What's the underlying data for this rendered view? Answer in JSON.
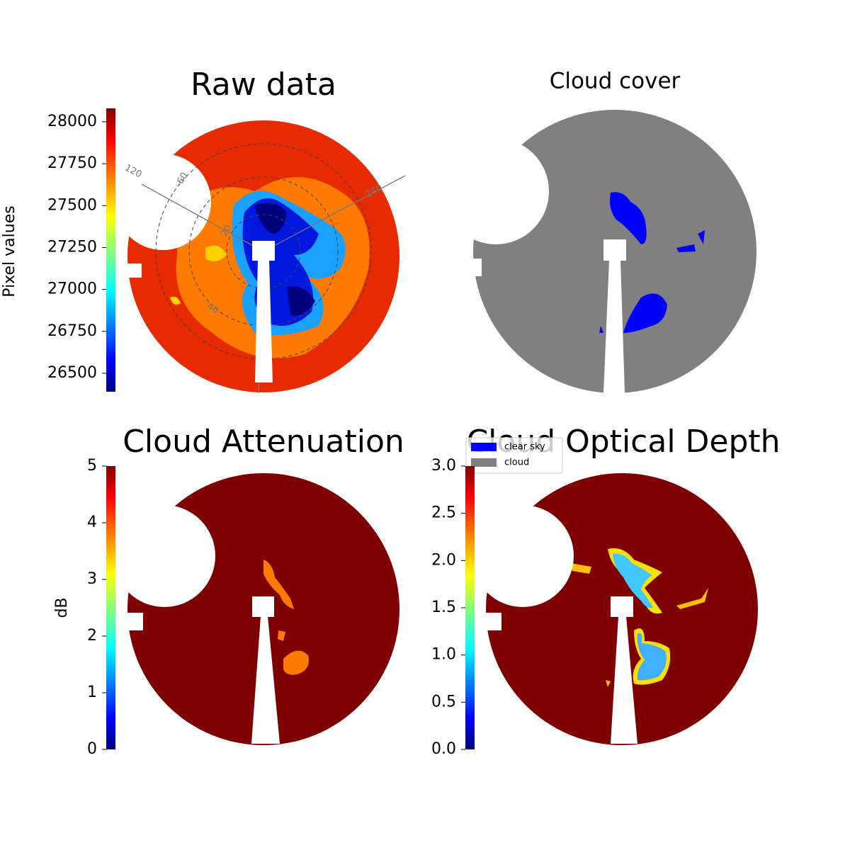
{
  "chart_data": [
    {
      "type": "image",
      "title": "Raw data",
      "colorbar": {
        "label": "Pixel values",
        "colormap": "jet",
        "lim": [
          26390,
          28080
        ],
        "ticks": [
          26500,
          26750,
          27000,
          27250,
          27500,
          27750,
          28000
        ]
      },
      "annotations": [
        "120",
        "60",
        "20",
        "40",
        "240"
      ]
    },
    {
      "type": "image",
      "title": "Cloud cover",
      "legend": [
        {
          "name": "clear sky",
          "color": "#0000ff"
        },
        {
          "name": "cloud",
          "color": "#808080"
        }
      ]
    },
    {
      "type": "image",
      "title": "Cloud Attenuation",
      "colorbar": {
        "label": "dB",
        "colormap": "jet",
        "lim": [
          0,
          5
        ],
        "ticks": [
          0,
          1,
          2,
          3,
          4,
          5
        ]
      }
    },
    {
      "type": "image",
      "title": "Cloud Optical Depth",
      "colorbar": {
        "colormap": "jet",
        "lim": [
          0,
          3
        ],
        "ticks": [
          {
            "value": 0,
            "label": "0.0"
          },
          0.5,
          {
            "value": 1,
            "label": "1.0"
          },
          1.5,
          {
            "value": 2,
            "label": "2.0"
          },
          2.5,
          {
            "value": 3,
            "label": "3.0"
          }
        ]
      }
    }
  ]
}
